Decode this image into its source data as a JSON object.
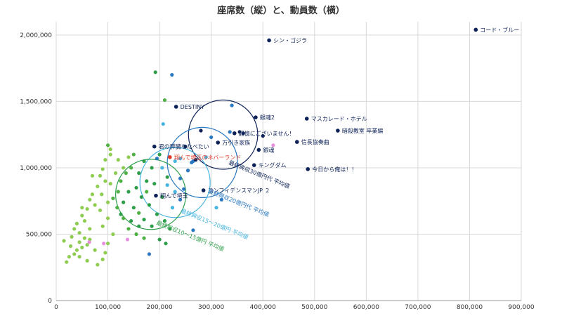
{
  "chart_data": {
    "type": "scatter",
    "title": "座席数（縦）と、動員数（横）",
    "xlabel": "",
    "ylabel": "",
    "xlim": [
      0,
      900000
    ],
    "ylim": [
      0,
      2100000
    ],
    "x_ticks": [
      0,
      100000,
      200000,
      300000,
      400000,
      500000,
      600000,
      700000,
      800000,
      900000
    ],
    "x_tick_labels": [
      "0",
      "100,000",
      "200,000",
      "300,000",
      "400,000",
      "500,000",
      "600,000",
      "700,000",
      "800,000",
      "900,000"
    ],
    "y_ticks": [
      0,
      500000,
      1000000,
      1500000,
      2000000
    ],
    "y_tick_labels": [
      "0",
      "500,000",
      "1,000,000",
      "1,500,000",
      "2,000,000"
    ],
    "grid": true,
    "colors": {
      "navy": "#0d2257",
      "blue": "#2a78c0",
      "sky": "#48b4e0",
      "darkgreen": "#2e9e4a",
      "green": "#4fb044",
      "lightgreen": "#8fcc52",
      "pink": "#e88ee0",
      "red": "#e03a2a"
    },
    "labeled_points": [
      {
        "name": "コード・ブルー",
        "x": 812000,
        "y": 2040000,
        "color": "navy"
      },
      {
        "name": "シン・ゴジラ",
        "x": 412000,
        "y": 1960000,
        "color": "navy"
      },
      {
        "name": "DESTINY",
        "x": 232000,
        "y": 1460000,
        "color": "navy"
      },
      {
        "name": "銀魂2",
        "x": 386000,
        "y": 1380000,
        "color": "navy"
      },
      {
        "name": "マスカレード・ホテル",
        "x": 485000,
        "y": 1370000,
        "color": "navy"
      },
      {
        "name": "暗殺教室 卒業編",
        "x": 545000,
        "y": 1280000,
        "color": "navy"
      },
      {
        "name": "記憶にございません！",
        "x": 345000,
        "y": 1260000,
        "color": "navy"
      },
      {
        "name": "信長協奏曲",
        "x": 466000,
        "y": 1195000,
        "color": "navy"
      },
      {
        "name": "万引き家族",
        "x": 313000,
        "y": 1190000,
        "color": "navy"
      },
      {
        "name": "君の膵臓をたべたい",
        "x": 190000,
        "y": 1160000,
        "color": "navy"
      },
      {
        "name": "銀魂",
        "x": 392000,
        "y": 1135000,
        "color": "navy"
      },
      {
        "name": "翔んで埼玉のネバーランド",
        "x": 220000,
        "y": 1080000,
        "color": "red"
      },
      {
        "name": "キングダム",
        "x": 383000,
        "y": 1020000,
        "color": "navy"
      },
      {
        "name": "今日から俺は！！",
        "x": 487000,
        "y": 990000,
        "color": "navy"
      },
      {
        "name": "コンフィデンスマンJP ２",
        "x": 285000,
        "y": 830000,
        "color": "navy"
      },
      {
        "name": "翔んで埼玉",
        "x": 193000,
        "y": 790000,
        "color": "navy"
      }
    ],
    "circles": [
      {
        "label": "最終興収30億円代 平均値",
        "cx": 323000,
        "cy": 1250000,
        "r": 67000,
        "color": "navy"
      },
      {
        "label": "最終興収20億円代 平均値",
        "cx": 283000,
        "cy": 1040000,
        "r": 68000,
        "color": "blue"
      },
      {
        "label": "最終興収15～20億円 平均値",
        "cx": 230000,
        "cy": 890000,
        "r": 68000,
        "color": "sky"
      },
      {
        "label": "最終興収10～15億円 平均値",
        "cx": 183000,
        "cy": 800000,
        "r": 68000,
        "color": "darkgreen"
      }
    ],
    "points": [
      {
        "x": 340000,
        "y": 1470000,
        "color": "blue"
      },
      {
        "x": 224000,
        "y": 1700000,
        "color": "blue"
      },
      {
        "x": 192000,
        "y": 1720000,
        "color": "darkgreen"
      },
      {
        "x": 210000,
        "y": 1510000,
        "color": "green"
      },
      {
        "x": 355000,
        "y": 1270000,
        "color": "navy"
      },
      {
        "x": 362000,
        "y": 1260000,
        "color": "navy"
      },
      {
        "x": 400000,
        "y": 1240000,
        "color": "navy"
      },
      {
        "x": 336000,
        "y": 1270000,
        "color": "blue"
      },
      {
        "x": 280000,
        "y": 1280000,
        "color": "navy"
      },
      {
        "x": 300000,
        "y": 1230000,
        "color": "blue"
      },
      {
        "x": 250000,
        "y": 1160000,
        "color": "navy"
      },
      {
        "x": 265000,
        "y": 1050000,
        "color": "blue"
      },
      {
        "x": 262000,
        "y": 1040000,
        "color": "blue"
      },
      {
        "x": 270000,
        "y": 1060000,
        "color": "navy"
      },
      {
        "x": 240000,
        "y": 1070000,
        "color": "sky"
      },
      {
        "x": 230000,
        "y": 1050000,
        "color": "sky"
      },
      {
        "x": 255000,
        "y": 980000,
        "color": "blue"
      },
      {
        "x": 290000,
        "y": 1080000,
        "color": "sky"
      },
      {
        "x": 240000,
        "y": 920000,
        "color": "blue"
      },
      {
        "x": 230000,
        "y": 820000,
        "color": "sky"
      },
      {
        "x": 215000,
        "y": 870000,
        "color": "sky"
      },
      {
        "x": 247000,
        "y": 840000,
        "color": "blue"
      },
      {
        "x": 240000,
        "y": 760000,
        "color": "blue"
      },
      {
        "x": 320000,
        "y": 760000,
        "color": "blue"
      },
      {
        "x": 310000,
        "y": 700000,
        "color": "sky"
      },
      {
        "x": 265000,
        "y": 530000,
        "color": "blue"
      },
      {
        "x": 180000,
        "y": 350000,
        "color": "blue"
      },
      {
        "x": 207000,
        "y": 1330000,
        "color": "sky"
      },
      {
        "x": 205000,
        "y": 1000000,
        "color": "sky"
      },
      {
        "x": 195000,
        "y": 1070000,
        "color": "blue"
      },
      {
        "x": 225000,
        "y": 700000,
        "color": "sky"
      },
      {
        "x": 200000,
        "y": 1100000,
        "color": "darkgreen"
      },
      {
        "x": 185000,
        "y": 1000000,
        "color": "darkgreen"
      },
      {
        "x": 170000,
        "y": 1050000,
        "color": "darkgreen"
      },
      {
        "x": 160000,
        "y": 960000,
        "color": "darkgreen"
      },
      {
        "x": 175000,
        "y": 900000,
        "color": "darkgreen"
      },
      {
        "x": 190000,
        "y": 880000,
        "color": "darkgreen"
      },
      {
        "x": 155000,
        "y": 850000,
        "color": "darkgreen"
      },
      {
        "x": 165000,
        "y": 780000,
        "color": "darkgreen"
      },
      {
        "x": 180000,
        "y": 720000,
        "color": "darkgreen"
      },
      {
        "x": 150000,
        "y": 700000,
        "color": "darkgreen"
      },
      {
        "x": 140000,
        "y": 820000,
        "color": "darkgreen"
      },
      {
        "x": 130000,
        "y": 740000,
        "color": "darkgreen"
      },
      {
        "x": 195000,
        "y": 650000,
        "color": "darkgreen"
      },
      {
        "x": 210000,
        "y": 600000,
        "color": "darkgreen"
      },
      {
        "x": 220000,
        "y": 540000,
        "color": "darkgreen"
      },
      {
        "x": 212000,
        "y": 430000,
        "color": "darkgreen"
      },
      {
        "x": 200000,
        "y": 460000,
        "color": "darkgreen"
      },
      {
        "x": 185000,
        "y": 560000,
        "color": "darkgreen"
      },
      {
        "x": 170000,
        "y": 610000,
        "color": "darkgreen"
      },
      {
        "x": 160000,
        "y": 560000,
        "color": "darkgreen"
      },
      {
        "x": 145000,
        "y": 600000,
        "color": "darkgreen"
      },
      {
        "x": 125000,
        "y": 650000,
        "color": "darkgreen"
      },
      {
        "x": 205000,
        "y": 780000,
        "color": "darkgreen"
      },
      {
        "x": 215000,
        "y": 930000,
        "color": "darkgreen"
      },
      {
        "x": 150000,
        "y": 1100000,
        "color": "green"
      },
      {
        "x": 145000,
        "y": 1000000,
        "color": "green"
      },
      {
        "x": 135000,
        "y": 960000,
        "color": "green"
      },
      {
        "x": 125000,
        "y": 900000,
        "color": "green"
      },
      {
        "x": 120000,
        "y": 820000,
        "color": "green"
      },
      {
        "x": 110000,
        "y": 770000,
        "color": "green"
      },
      {
        "x": 118000,
        "y": 700000,
        "color": "green"
      },
      {
        "x": 130000,
        "y": 620000,
        "color": "green"
      },
      {
        "x": 140000,
        "y": 540000,
        "color": "green"
      },
      {
        "x": 155000,
        "y": 500000,
        "color": "green"
      },
      {
        "x": 170000,
        "y": 470000,
        "color": "green"
      },
      {
        "x": 160000,
        "y": 660000,
        "color": "green"
      },
      {
        "x": 175000,
        "y": 820000,
        "color": "green"
      },
      {
        "x": 100000,
        "y": 1170000,
        "color": "green"
      },
      {
        "x": 105000,
        "y": 1140000,
        "color": "lightgreen"
      },
      {
        "x": 105000,
        "y": 1100000,
        "color": "lightgreen"
      },
      {
        "x": 95000,
        "y": 1060000,
        "color": "lightgreen"
      },
      {
        "x": 90000,
        "y": 990000,
        "color": "lightgreen"
      },
      {
        "x": 85000,
        "y": 940000,
        "color": "lightgreen"
      },
      {
        "x": 95000,
        "y": 900000,
        "color": "lightgreen"
      },
      {
        "x": 80000,
        "y": 860000,
        "color": "lightgreen"
      },
      {
        "x": 70000,
        "y": 800000,
        "color": "lightgreen"
      },
      {
        "x": 65000,
        "y": 760000,
        "color": "lightgreen"
      },
      {
        "x": 75000,
        "y": 720000,
        "color": "lightgreen"
      },
      {
        "x": 60000,
        "y": 690000,
        "color": "lightgreen"
      },
      {
        "x": 50000,
        "y": 640000,
        "color": "lightgreen"
      },
      {
        "x": 55000,
        "y": 600000,
        "color": "lightgreen"
      },
      {
        "x": 40000,
        "y": 580000,
        "color": "lightgreen"
      },
      {
        "x": 35000,
        "y": 540000,
        "color": "lightgreen"
      },
      {
        "x": 45000,
        "y": 510000,
        "color": "lightgreen"
      },
      {
        "x": 30000,
        "y": 480000,
        "color": "lightgreen"
      },
      {
        "x": 55000,
        "y": 470000,
        "color": "lightgreen"
      },
      {
        "x": 45000,
        "y": 440000,
        "color": "lightgreen"
      },
      {
        "x": 60000,
        "y": 420000,
        "color": "lightgreen"
      },
      {
        "x": 50000,
        "y": 400000,
        "color": "lightgreen"
      },
      {
        "x": 40000,
        "y": 380000,
        "color": "lightgreen"
      },
      {
        "x": 35000,
        "y": 350000,
        "color": "lightgreen"
      },
      {
        "x": 25000,
        "y": 330000,
        "color": "lightgreen"
      },
      {
        "x": 45000,
        "y": 330000,
        "color": "lightgreen"
      },
      {
        "x": 20000,
        "y": 290000,
        "color": "lightgreen"
      },
      {
        "x": 60000,
        "y": 300000,
        "color": "lightgreen"
      },
      {
        "x": 80000,
        "y": 270000,
        "color": "lightgreen"
      },
      {
        "x": 90000,
        "y": 310000,
        "color": "lightgreen"
      },
      {
        "x": 75000,
        "y": 380000,
        "color": "lightgreen"
      },
      {
        "x": 100000,
        "y": 430000,
        "color": "lightgreen"
      },
      {
        "x": 110000,
        "y": 500000,
        "color": "lightgreen"
      },
      {
        "x": 90000,
        "y": 560000,
        "color": "lightgreen"
      },
      {
        "x": 100000,
        "y": 620000,
        "color": "lightgreen"
      },
      {
        "x": 85000,
        "y": 680000,
        "color": "lightgreen"
      },
      {
        "x": 115000,
        "y": 960000,
        "color": "lightgreen"
      },
      {
        "x": 120000,
        "y": 1060000,
        "color": "lightgreen"
      },
      {
        "x": 65000,
        "y": 540000,
        "color": "lightgreen"
      },
      {
        "x": 15000,
        "y": 450000,
        "color": "lightgreen"
      },
      {
        "x": 28000,
        "y": 410000,
        "color": "lightgreen"
      },
      {
        "x": 95000,
        "y": 360000,
        "color": "lightgreen"
      },
      {
        "x": 50000,
        "y": 700000,
        "color": "lightgreen"
      },
      {
        "x": 70000,
        "y": 940000,
        "color": "lightgreen"
      },
      {
        "x": 88000,
        "y": 800000,
        "color": "lightgreen"
      },
      {
        "x": 105000,
        "y": 880000,
        "color": "lightgreen"
      },
      {
        "x": 65000,
        "y": 460000,
        "color": "lightgreen"
      },
      {
        "x": 130000,
        "y": 1000000,
        "color": "lightgreen"
      },
      {
        "x": 140000,
        "y": 1080000,
        "color": "lightgreen"
      },
      {
        "x": 100000,
        "y": 740000,
        "color": "lightgreen"
      },
      {
        "x": 420000,
        "y": 1170000,
        "color": "pink"
      },
      {
        "x": 138000,
        "y": 460000,
        "color": "pink"
      },
      {
        "x": 92000,
        "y": 430000,
        "color": "pink"
      },
      {
        "x": 64000,
        "y": 440000,
        "color": "pink"
      }
    ]
  }
}
